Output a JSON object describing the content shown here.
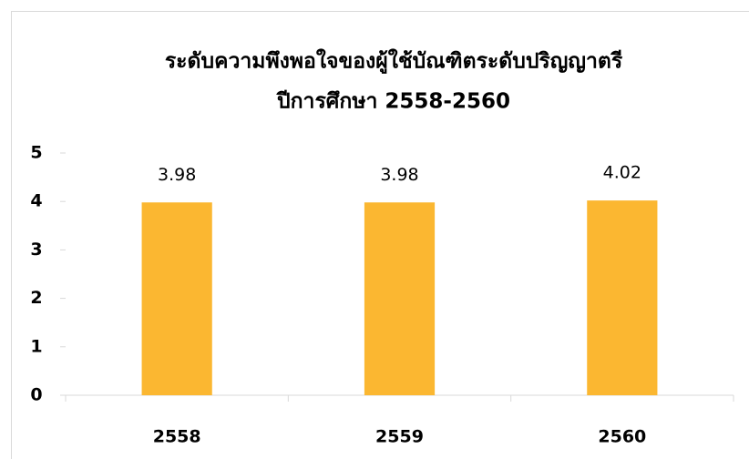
{
  "chart_data": {
    "type": "bar",
    "title": [
      "ระดับความพึงพอใจของผู้ใช้บัณฑิตระดับปริญญาตรี",
      "ปีการศึกษา 2558-2560"
    ],
    "categories": [
      "2558",
      "2559",
      "2560"
    ],
    "values": [
      3.98,
      3.98,
      4.02
    ],
    "color": "#fbb731",
    "ylim": [
      0,
      5
    ],
    "yticks": [
      0,
      1,
      2,
      3,
      4,
      5
    ],
    "grid": false
  }
}
